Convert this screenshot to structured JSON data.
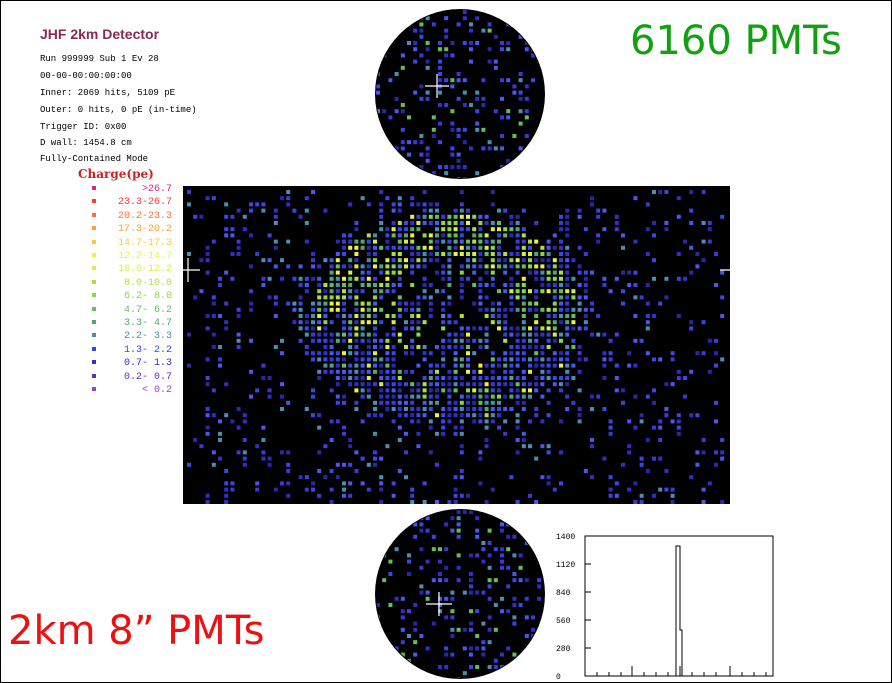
{
  "detector": {
    "title": "JHF 2km Detector",
    "info_lines": [
      "Run 999999 Sub 1 Ev 28",
      "00-00-00:00:00:00",
      "Inner: 2069 hits, 5109 pE",
      "Outer: 0 hits, 0 pE (in-time)",
      "Trigger ID: 0x00",
      "D wall: 1454.8 cm",
      "Fully-Contained Mode"
    ]
  },
  "legend": {
    "title": "Charge(pe)",
    "items": [
      {
        "label": ">26.7",
        "color": "#d8287a"
      },
      {
        "label": "23.3-26.7",
        "color": "#ff3838"
      },
      {
        "label": "20.2-23.3",
        "color": "#ff7030"
      },
      {
        "label": "17.3-20.2",
        "color": "#ffa030"
      },
      {
        "label": "14.7-17.3",
        "color": "#ffc840"
      },
      {
        "label": "12.2-14.7",
        "color": "#f0f040"
      },
      {
        "label": "10.0-12.2",
        "color": "#d8f040"
      },
      {
        "label": "8.0-10.0",
        "color": "#b0e040"
      },
      {
        "label": "6.2- 8.0",
        "color": "#88d848"
      },
      {
        "label": "4.7- 6.2",
        "color": "#60c060"
      },
      {
        "label": "3.3- 4.7",
        "color": "#50a878"
      },
      {
        "label": "2.2- 3.3",
        "color": "#4890b0"
      },
      {
        "label": "1.3- 2.2",
        "color": "#3848e8"
      },
      {
        "label": "0.7- 1.3",
        "color": "#3030c8"
      },
      {
        "label": "0.2- 0.7",
        "color": "#6030c0"
      },
      {
        "label": "< 0.2",
        "color": "#a040d0"
      }
    ]
  },
  "annotations": {
    "pmt_count": "6160 PMTs",
    "pmt_label": "2km 8” PMTs"
  },
  "histogram": {
    "y_ticks": [
      "1400",
      "1120",
      "840",
      "560",
      "280",
      "0"
    ],
    "y_max": 1400,
    "peak_value": 1300
  },
  "colors": {
    "pmt_count": "#12a012",
    "pmt_label": "#ee1010",
    "title": "#8a2a55"
  }
}
